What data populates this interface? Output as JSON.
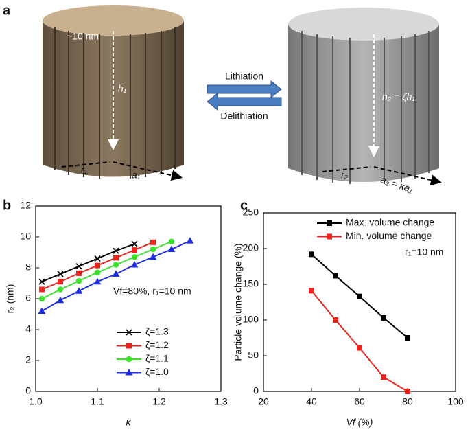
{
  "figure": {
    "panel_a": {
      "panel_label": "a",
      "pore_size": "~10 nm",
      "height_before": "h₁",
      "radius_before": "r₁",
      "spacing_before": "a₁",
      "arrow_forward": "Lithiation",
      "arrow_backward": "Delithiation",
      "height_after": "h₂ = ζh₁",
      "radius_after": "r₂",
      "spacing_after": "a₂ = κa₁"
    }
  },
  "chart_data": [
    {
      "type": "line",
      "panel_label": "b",
      "xlabel": "κ",
      "ylabel": "r₂ (nm)",
      "annotation": "Vf=80%, r₁=10 nm",
      "legend": "lower right",
      "xlim": [
        1.0,
        1.3
      ],
      "xticks": [
        {
          "value": 1.0,
          "label": "1.0"
        },
        1.1,
        1.2,
        1.3
      ],
      "ylim": [
        0,
        12
      ],
      "yticks": [
        0,
        2,
        4,
        6,
        8,
        10,
        12
      ],
      "series": [
        {
          "name": "ζ=1.3",
          "color": "#000000",
          "marker": "cross",
          "x": [
            1.01,
            1.04,
            1.07,
            1.1,
            1.13,
            1.16
          ],
          "values": [
            7.1,
            7.6,
            8.1,
            8.6,
            9.1,
            9.55
          ]
        },
        {
          "name": "ζ=1.2",
          "color": "#e8251f",
          "marker": "square",
          "x": [
            1.01,
            1.04,
            1.07,
            1.1,
            1.13,
            1.16,
            1.19
          ],
          "values": [
            6.6,
            7.1,
            7.65,
            8.15,
            8.65,
            9.15,
            9.65
          ]
        },
        {
          "name": "ζ=1.1",
          "color": "#3ee02e",
          "marker": "circle",
          "x": [
            1.01,
            1.04,
            1.07,
            1.1,
            1.13,
            1.16,
            1.19,
            1.22
          ],
          "values": [
            6.0,
            6.6,
            7.15,
            7.7,
            8.2,
            8.7,
            9.2,
            9.7
          ]
        },
        {
          "name": "ζ=1.0",
          "color": "#1f2fe0",
          "marker": "triangle",
          "x": [
            1.01,
            1.04,
            1.07,
            1.1,
            1.13,
            1.16,
            1.19,
            1.22,
            1.25
          ],
          "values": [
            5.2,
            5.9,
            6.5,
            7.1,
            7.6,
            8.2,
            8.7,
            9.2,
            9.75
          ]
        }
      ]
    },
    {
      "type": "line",
      "panel_label": "c",
      "xlabel": "Vf (%)",
      "ylabel": "Particle volume change (%)",
      "annotation": "r₁=10 nm",
      "legend": "upper right",
      "xlim": [
        20,
        100
      ],
      "xticks": [
        20,
        40,
        60,
        80,
        100
      ],
      "ylim": [
        0,
        250
      ],
      "yticks": [
        0,
        50,
        100,
        150,
        200,
        250
      ],
      "series": [
        {
          "name": "Max. volume change",
          "color": "#000000",
          "marker": "square",
          "x": [
            40,
            50,
            60,
            70,
            80
          ],
          "values": [
            192,
            162,
            133,
            103,
            75
          ]
        },
        {
          "name": "Min. volume change",
          "color": "#e8251f",
          "marker": "square",
          "x": [
            40,
            50,
            60,
            70,
            80
          ],
          "values": [
            141,
            100,
            61,
            20,
            0
          ]
        }
      ]
    }
  ]
}
